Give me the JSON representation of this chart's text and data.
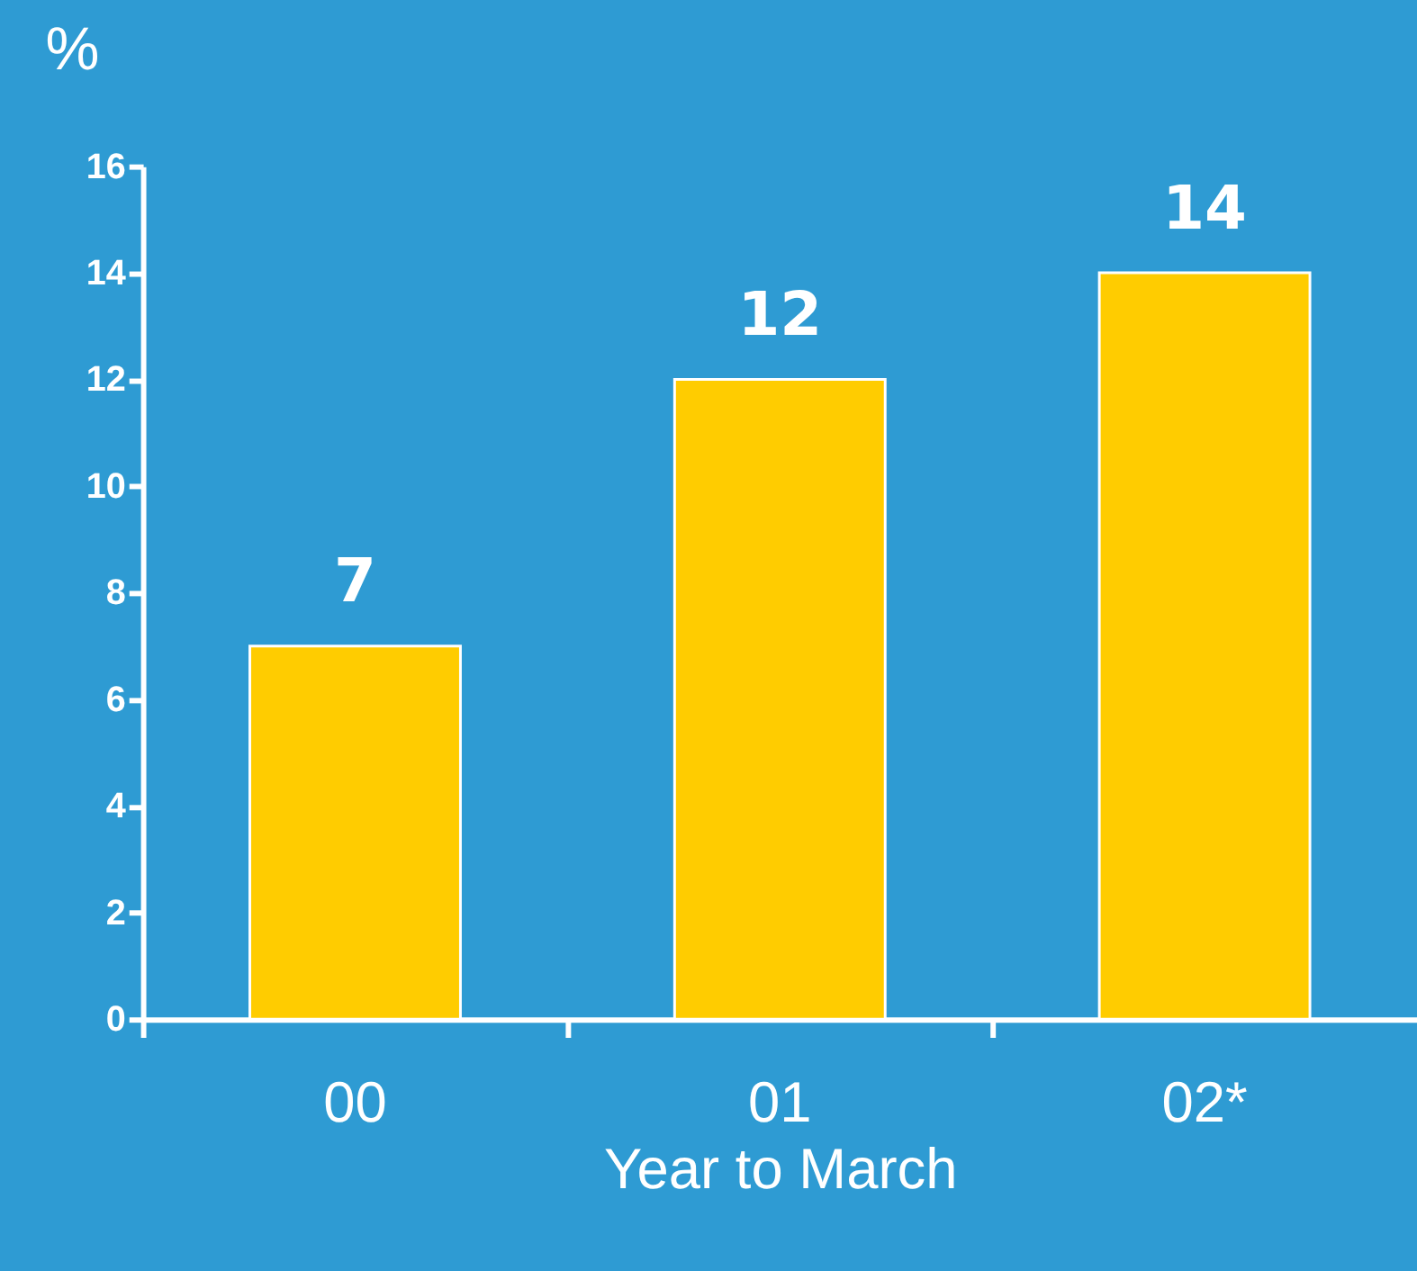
{
  "chart_data": {
    "type": "bar",
    "ylabel": "%",
    "xlabel": "Year to March",
    "categories": [
      "00",
      "01",
      "02*"
    ],
    "values": [
      7,
      12,
      14
    ],
    "color": "#ffcc00",
    "ylim": [
      0,
      16
    ],
    "yticks": [
      0,
      2,
      4,
      6,
      8,
      10,
      12,
      14,
      16
    ],
    "grid": false,
    "data_labels": true
  }
}
